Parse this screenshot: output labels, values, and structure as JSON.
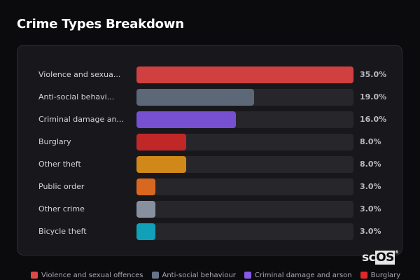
{
  "title": "Crime Types Breakdown",
  "chart_data": {
    "type": "bar",
    "orientation": "horizontal",
    "title": "Crime Types Breakdown",
    "categories": [
      "Violence and sexual offences",
      "Anti-social behaviour",
      "Criminal damage and arson",
      "Burglary",
      "Other theft",
      "Public order",
      "Other crime",
      "Bicycle theft"
    ],
    "display_labels": [
      "Violence and sexua...",
      "Anti-social behavi...",
      "Criminal damage an...",
      "Burglary",
      "Other theft",
      "Public order",
      "Other crime",
      "Bicycle theft"
    ],
    "values": [
      35.0,
      19.0,
      16.0,
      8.0,
      8.0,
      3.0,
      3.0,
      3.0
    ],
    "value_labels": [
      "35.0%",
      "19.0%",
      "16.0%",
      "8.0%",
      "8.0%",
      "3.0%",
      "3.0%",
      "3.0%"
    ],
    "colors": [
      "#d04040",
      "#5c6878",
      "#7650d0",
      "#c02828",
      "#d08818",
      "#d86820",
      "#8890a0",
      "#10a0b8"
    ],
    "xlim": [
      0,
      35
    ],
    "unit": "%",
    "legend_position": "bottom",
    "grid": false
  },
  "legend": [
    {
      "label": "Violence and sexual offences",
      "color": "#e04848"
    },
    {
      "label": "Anti-social behaviour",
      "color": "#66748a"
    },
    {
      "label": "Criminal damage and arson",
      "color": "#8858e8"
    },
    {
      "label": "Burglary",
      "color": "#e02828"
    }
  ],
  "watermark": {
    "prefix": "sc",
    "highlight": "OS",
    "mark": "®"
  }
}
